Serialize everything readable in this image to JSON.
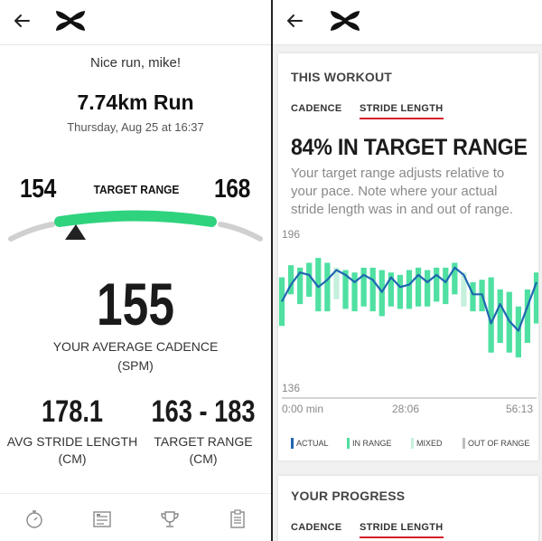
{
  "colors": {
    "accent_red": "#d4202c",
    "in_range": "#4fe0a2",
    "mixed": "#c5f0dd",
    "out_of_range": "#bdbdbd",
    "actual": "#1e67b0",
    "gauge_green": "#2fd37d",
    "gauge_gray": "#d0d0d0"
  },
  "left": {
    "greeting": "Nice run, mike!",
    "run_title": "7.74km Run",
    "run_date": "Thursday, Aug 25 at 16:37",
    "range_low": "154",
    "range_high": "168",
    "range_label": "TARGET RANGE",
    "avg_value": "155",
    "avg_label": "YOUR AVERAGE CADENCE",
    "avg_unit": "(SPM)",
    "stride_value": "178.1",
    "stride_label": "AVG STRIDE LENGTH",
    "stride_unit": "(CM)",
    "target_value": "163 - 183",
    "target_label": "TARGET RANGE",
    "target_unit": "(CM)",
    "nav_icons": [
      "stopwatch-icon",
      "list-card-icon",
      "trophy-icon",
      "clipboard-icon"
    ],
    "gauge_level": 0.35
  },
  "right": {
    "workout_title": "THIS WORKOUT",
    "tabs": [
      "CADENCE",
      "STRIDE LENGTH"
    ],
    "active_tab": "STRIDE LENGTH",
    "pct_headline": "84% IN TARGET RANGE",
    "description": "Your target range adjusts relative to your pace. Note where your actual stride length was in and out of range.",
    "legend": [
      "ACTUAL",
      "IN RANGE",
      "MIXED",
      "OUT OF RANGE"
    ],
    "progress_title": "YOUR PROGRESS",
    "progress_tabs": [
      "CADENCE",
      "STRIDE LENGTH"
    ]
  },
  "chart_data": {
    "type": "area",
    "ylim": [
      136,
      196
    ],
    "yticks": [
      "196",
      "136"
    ],
    "xticks": [
      "0:00 min",
      "28:06",
      "56:13"
    ],
    "x": [
      0,
      2,
      4,
      6,
      8,
      10,
      12,
      14,
      16,
      18,
      20,
      22,
      24,
      26,
      28,
      30,
      32,
      34,
      36,
      38,
      40,
      42,
      44,
      46,
      48,
      50,
      52,
      54,
      56
    ],
    "actual": [
      172,
      179,
      184,
      183,
      178,
      181,
      185,
      183,
      180,
      183,
      181,
      176,
      182,
      178,
      179,
      183,
      180,
      183,
      180,
      186,
      183,
      175,
      175,
      163,
      171,
      164,
      160,
      170,
      180
    ],
    "range_upper": [
      182,
      187,
      186,
      188,
      190,
      188,
      186,
      185,
      184,
      186,
      186,
      185,
      184,
      183,
      185,
      186,
      185,
      186,
      186,
      188,
      184,
      180,
      181,
      182,
      177,
      176,
      170,
      177,
      184
    ],
    "range_lower": [
      162,
      175,
      171,
      174,
      168,
      168,
      173,
      169,
      168,
      170,
      168,
      166,
      170,
      169,
      169,
      170,
      170,
      172,
      171,
      175,
      170,
      168,
      168,
      151,
      155,
      151,
      149,
      155,
      163
    ]
  }
}
